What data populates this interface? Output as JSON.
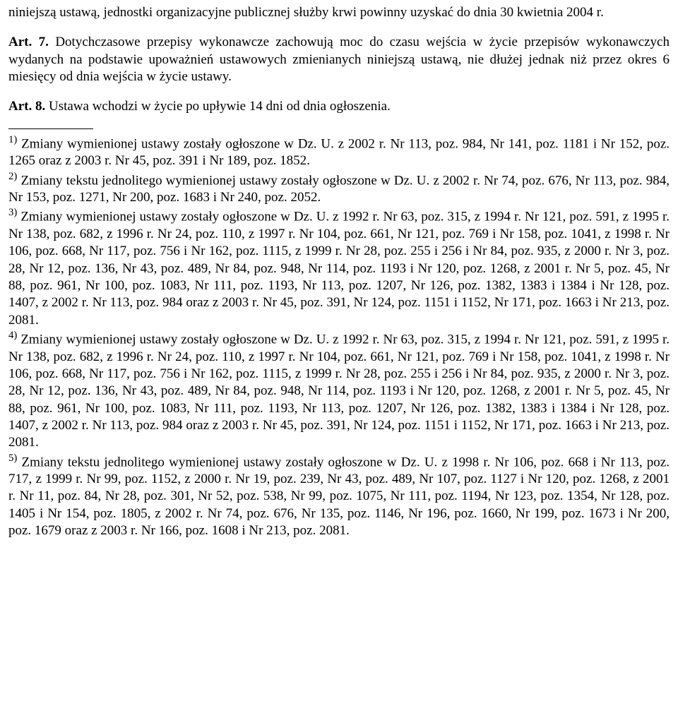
{
  "para1": "niniejszą ustawą, jednostki organizacyjne publicznej służby krwi powinny uzyskać do dnia 30 kwietnia 2004 r.",
  "art7_label": "Art. 7.",
  "art7_text": " Dotychczasowe przepisy wykonawcze zachowują moc do czasu wejścia w życie przepisów wykonawczych wydanych na podstawie upoważnień ustawowych zmienianych niniejszą ustawą, nie dłużej jednak niż przez okres 6 miesięcy od dnia wejścia w życie ustawy.",
  "art8_label": "Art. 8.",
  "art8_text": " Ustawa wchodzi w życie po upływie 14 dni od dnia ogłoszenia.",
  "fn1_marker": "1)",
  "fn1_text": "  Zmiany wymienionej ustawy zostały ogłoszone w Dz. U. z 2002 r. Nr 113, poz. 984, Nr 141, poz. 1181 i Nr 152, poz. 1265 oraz z 2003 r. Nr 45, poz. 391 i Nr 189, poz. 1852.",
  "fn2_marker": "2)",
  "fn2_text": "  Zmiany tekstu jednolitego wymienionej ustawy zostały ogłoszone w Dz. U. z 2002 r. Nr 74, poz. 676, Nr 113, poz. 984, Nr 153, poz. 1271, Nr 200, poz. 1683 i Nr 240, poz. 2052.",
  "fn3_marker": "3)",
  "fn3_text": "  Zmiany wymienionej ustawy zostały ogłoszone w Dz. U. z 1992 r. Nr 63, poz. 315, z 1994 r. Nr 121, poz. 591, z 1995 r. Nr 138, poz. 682, z 1996 r. Nr 24, poz. 110, z 1997 r. Nr 104, poz. 661, Nr 121, poz. 769 i Nr 158, poz. 1041, z 1998 r. Nr 106, poz. 668, Nr 117, poz. 756 i Nr 162, poz. 1115, z 1999 r. Nr 28, poz. 255 i 256 i Nr 84, poz. 935, z 2000 r. Nr 3, poz. 28, Nr 12, poz. 136, Nr 43, poz. 489, Nr 84, poz. 948, Nr 114, poz. 1193 i Nr 120, poz. 1268, z 2001 r. Nr 5, poz. 45, Nr 88, poz. 961, Nr 100, poz. 1083, Nr 111, poz. 1193, Nr 113, poz. 1207, Nr 126, poz. 1382, 1383 i 1384 i Nr 128, poz. 1407, z 2002 r. Nr 113, poz. 984 oraz z 2003 r. Nr 45, poz. 391, Nr 124, poz. 1151 i 1152, Nr 171, poz. 1663 i Nr 213, poz. 2081.",
  "fn4_marker": "4)",
  "fn4_text": "  Zmiany wymienionej ustawy zostały ogłoszone w Dz. U. z 1992 r. Nr 63, poz. 315, z 1994 r. Nr 121, poz. 591, z 1995 r. Nr 138, poz. 682, z 1996 r. Nr 24, poz. 110, z 1997 r. Nr 104, poz. 661, Nr 121, poz. 769 i Nr 158, poz. 1041, z 1998 r. Nr 106, poz. 668, Nr 117, poz. 756 i Nr 162, poz. 1115, z 1999 r. Nr 28, poz. 255 i 256 i Nr 84, poz. 935, z 2000 r. Nr 3, poz. 28, Nr 12, poz. 136, Nr 43, poz. 489, Nr 84, poz. 948, Nr 114, poz. 1193 i Nr 120, poz. 1268, z 2001 r. Nr 5, poz. 45, Nr 88, poz. 961, Nr 100, poz. 1083, Nr 111, poz. 1193, Nr 113, poz. 1207, Nr 126, poz. 1382, 1383 i 1384 i Nr 128, poz. 1407, z 2002 r. Nr 113, poz. 984 oraz z 2003 r. Nr 45, poz. 391, Nr 124, poz. 1151 i 1152, Nr 171, poz. 1663 i Nr 213, poz. 2081.",
  "fn5_marker": "5)",
  "fn5_text": "  Zmiany tekstu jednolitego wymienionej ustawy zostały ogłoszone w Dz. U. z 1998 r. Nr 106, poz. 668 i Nr 113, poz. 717, z 1999 r. Nr 99, poz. 1152, z 2000 r. Nr 19, poz. 239, Nr 43, poz. 489, Nr 107, poz. 1127 i Nr 120, poz. 1268, z 2001 r. Nr 11, poz. 84, Nr 28, poz. 301, Nr 52, poz. 538, Nr 99, poz. 1075, Nr 111, poz. 1194, Nr 123, poz. 1354, Nr 128, poz. 1405 i Nr 154, poz. 1805, z 2002 r. Nr 74, poz. 676, Nr 135, poz. 1146, Nr 196, poz. 1660, Nr 199, poz. 1673 i Nr 200, poz. 1679 oraz z 2003 r. Nr 166, poz. 1608 i Nr 213, poz. 2081."
}
